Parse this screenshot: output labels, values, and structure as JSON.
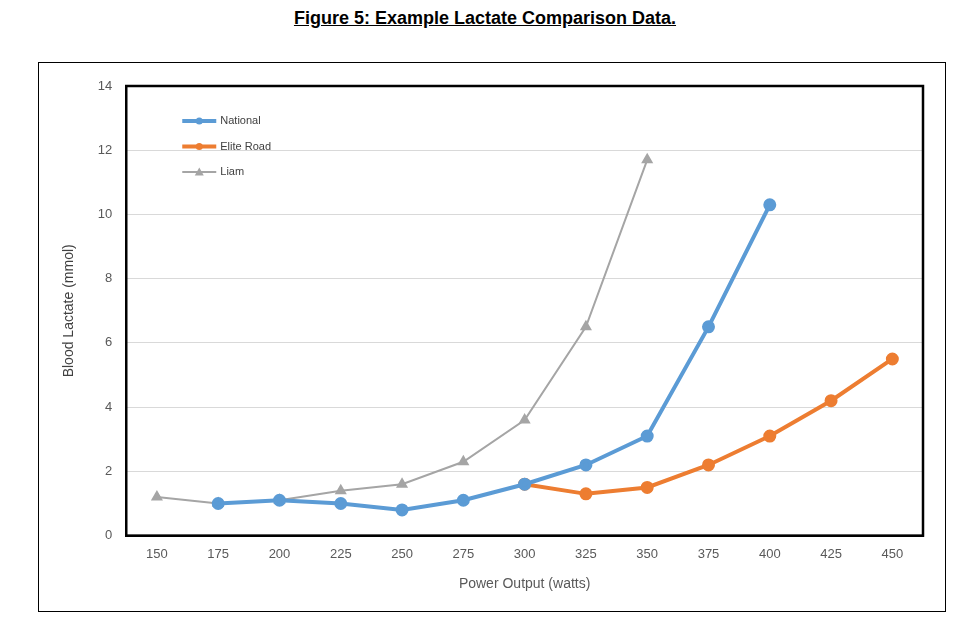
{
  "chart_data": {
    "type": "line",
    "title": "Figure 5: Example Lactate Comparison Data.",
    "x_label": "Power Output (watts)",
    "y_label": "Blood Lactate (mmol)",
    "categories": [
      "150",
      "175",
      "200",
      "225",
      "250",
      "275",
      "300",
      "325",
      "350",
      "375",
      "400",
      "425",
      "450"
    ],
    "series": [
      {
        "name": "National",
        "color": "#5b9bd5",
        "marker": "circle",
        "line_style": "solid",
        "values": [
          null,
          1.0,
          1.1,
          1.0,
          0.8,
          1.1,
          1.6,
          2.2,
          3.1,
          6.5,
          10.3,
          null,
          null
        ]
      },
      {
        "name": "Elite Road",
        "color": "#ed7d31",
        "marker": "circle",
        "line_style": "solid",
        "values": [
          null,
          null,
          null,
          null,
          null,
          null,
          1.6,
          1.3,
          1.5,
          2.2,
          3.1,
          4.2,
          5.5
        ]
      },
      {
        "name": "Liam",
        "color": "#a5a5a5",
        "marker": "triangle",
        "line_style": "solid",
        "values": [
          1.2,
          1.0,
          1.1,
          1.4,
          1.6,
          2.3,
          3.6,
          6.5,
          11.7,
          null,
          null,
          null,
          null
        ]
      }
    ],
    "ylim": [
      0,
      14
    ],
    "yticks": [
      0,
      2,
      4,
      6,
      8,
      10,
      12,
      14
    ],
    "grid": true,
    "legend": "upper left"
  }
}
